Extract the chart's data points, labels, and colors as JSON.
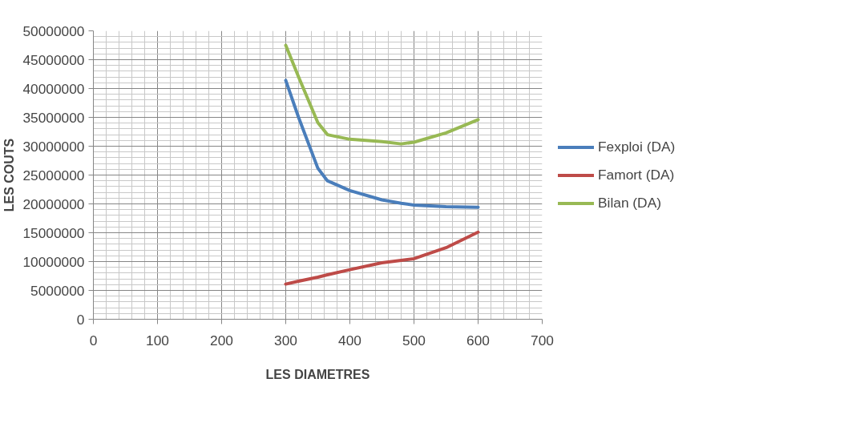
{
  "chart_data": {
    "type": "line",
    "xlabel": "LES DIAMETRES",
    "ylabel": "LES COUTS",
    "x": [
      300,
      320,
      350,
      365,
      400,
      450,
      480,
      500,
      550,
      600
    ],
    "series": [
      {
        "name": "Fexploi (DA)",
        "color": "#4a7ebb",
        "values": [
          41400000,
          35000000,
          26200000,
          24000000,
          22300000,
          20700000,
          20100000,
          19800000,
          19500000,
          19400000
        ]
      },
      {
        "name": "Famort (DA)",
        "color": "#be4b48",
        "values": [
          6100000,
          6600000,
          7300000,
          7700000,
          8600000,
          9800000,
          10200000,
          10500000,
          12400000,
          15100000
        ]
      },
      {
        "name": "Bilan (DA)",
        "color": "#98b954",
        "values": [
          47500000,
          42000000,
          34100000,
          32000000,
          31200000,
          30800000,
          30400000,
          30700000,
          32300000,
          34600000
        ]
      }
    ],
    "xlim": [
      0,
      700
    ],
    "ylim": [
      0,
      50000000
    ],
    "xticks": [
      0,
      100,
      200,
      300,
      400,
      500,
      600,
      700
    ],
    "yticks": [
      0,
      5000000,
      10000000,
      15000000,
      20000000,
      25000000,
      30000000,
      35000000,
      40000000,
      45000000,
      50000000
    ],
    "grid": true,
    "legend": "right",
    "marker": "none",
    "line_style": "solid"
  }
}
